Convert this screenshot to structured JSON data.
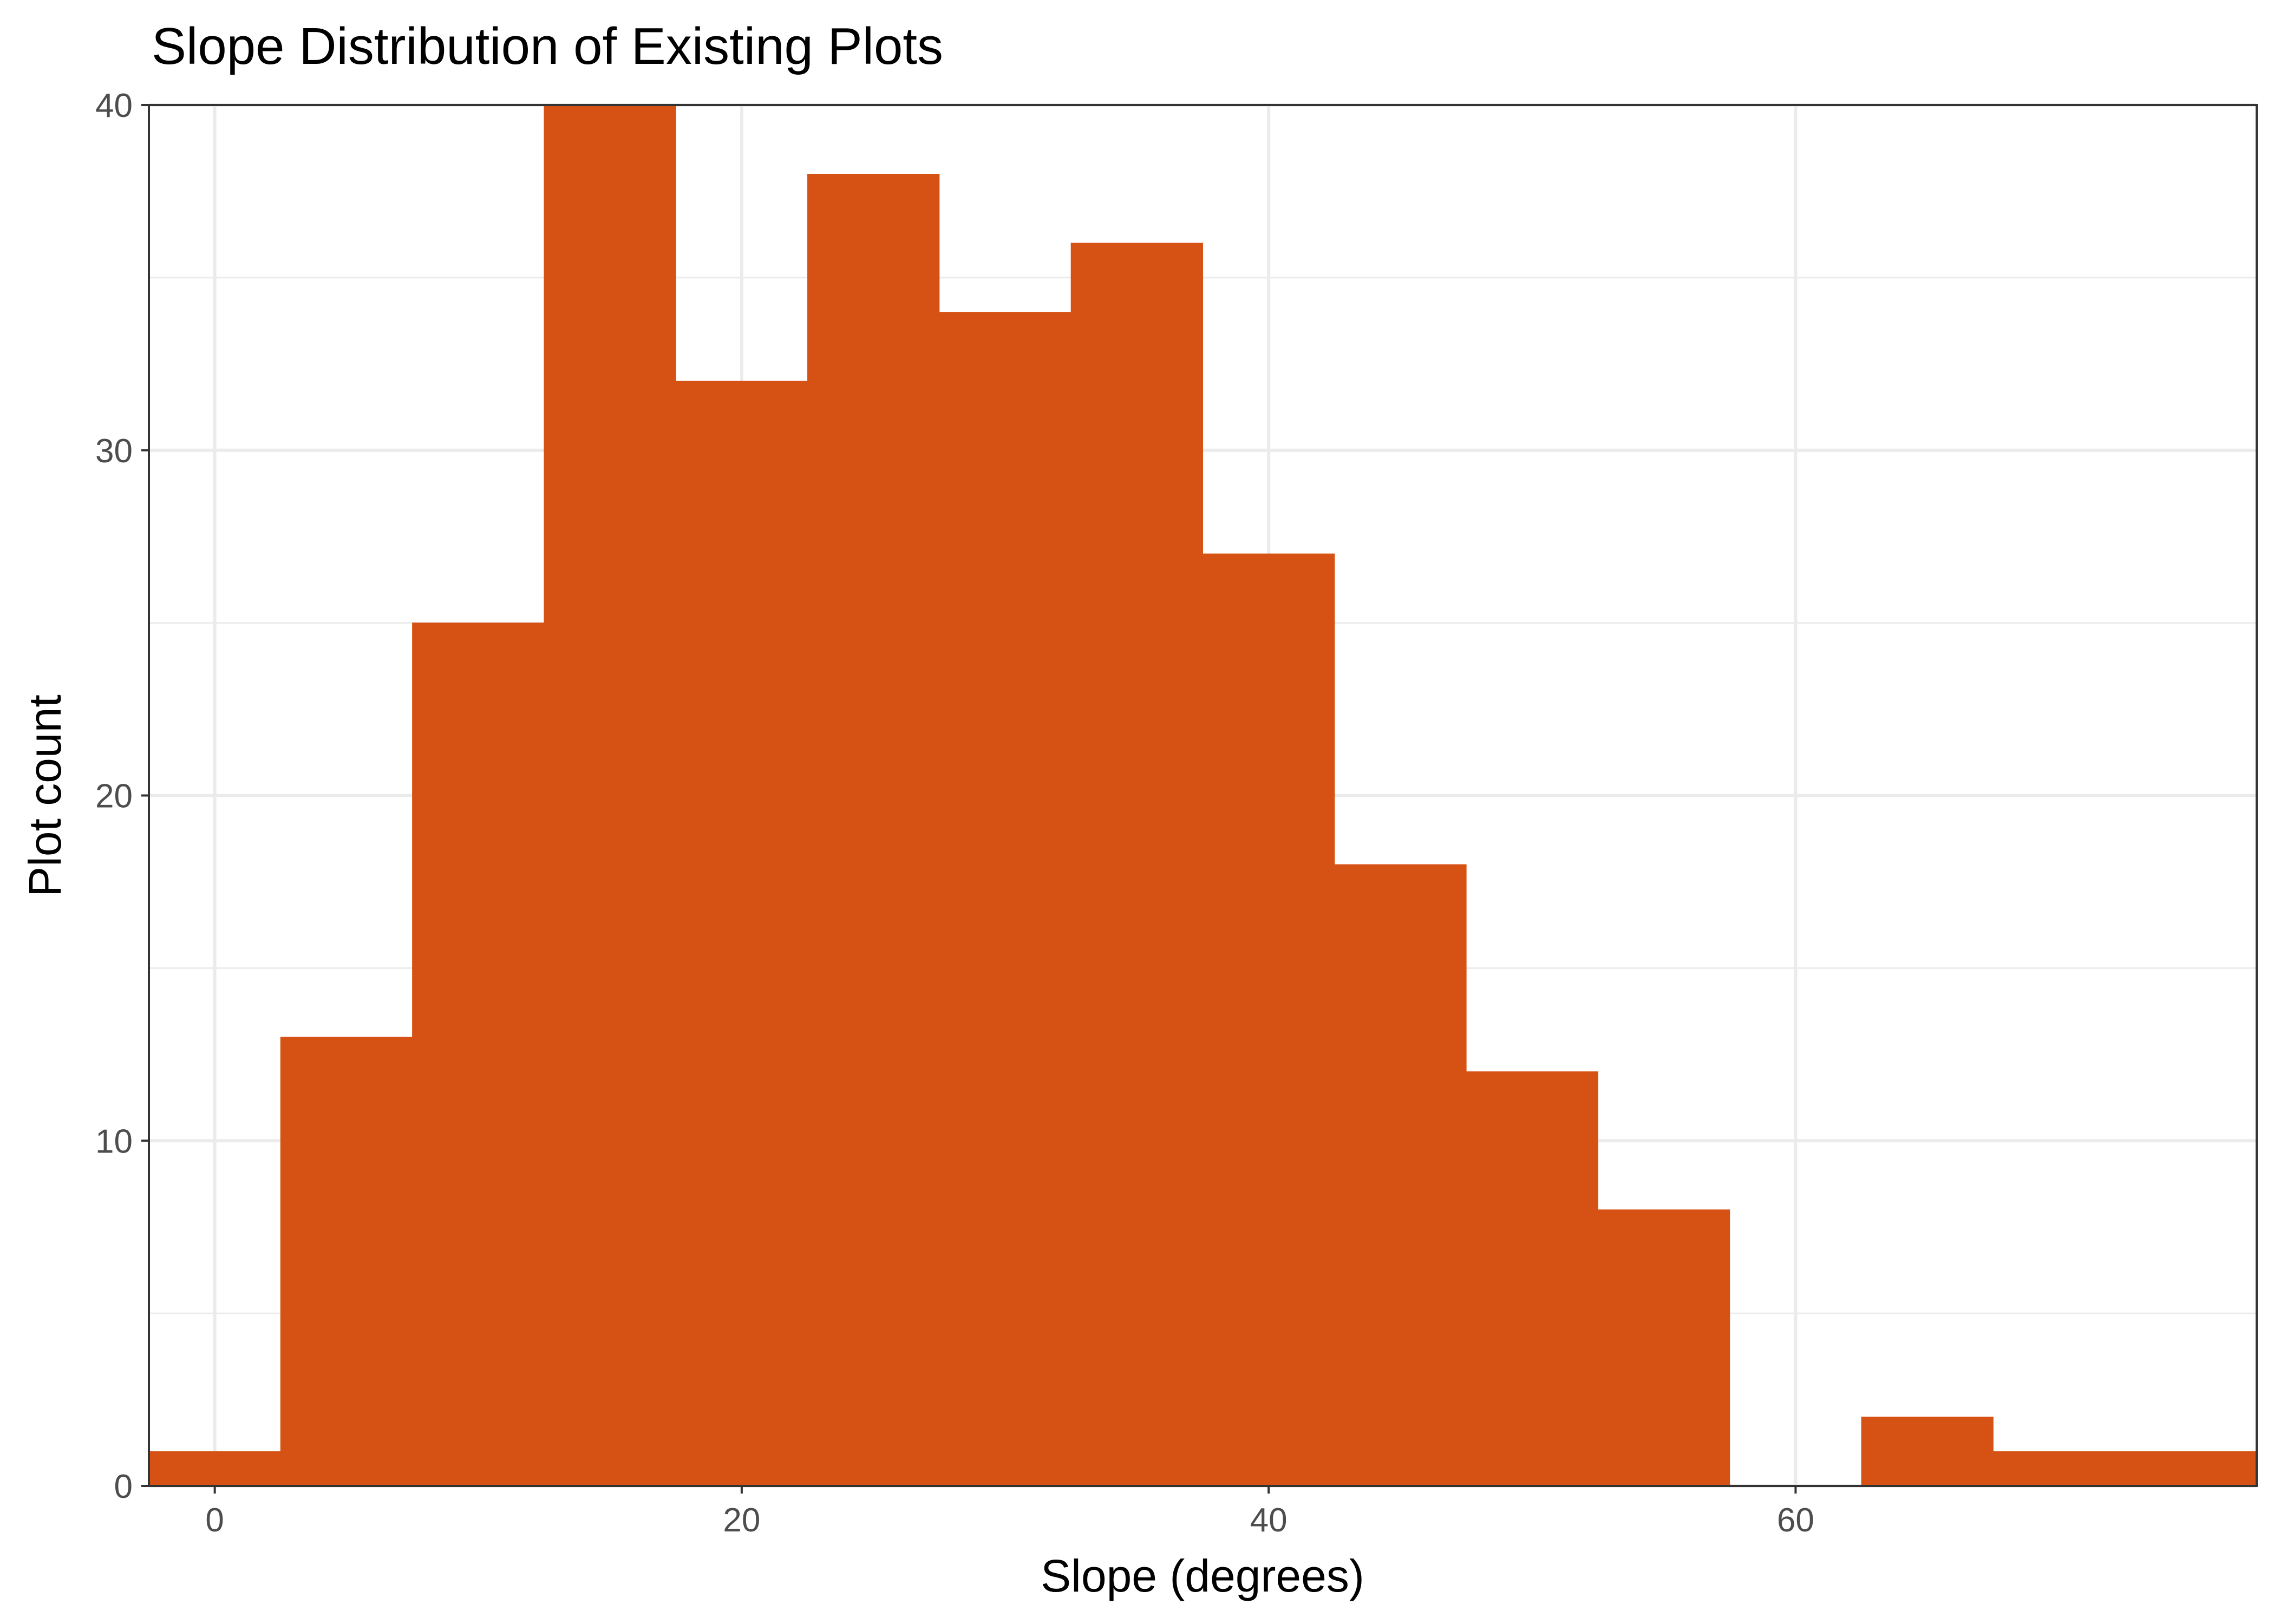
{
  "chart_data": {
    "type": "bar",
    "title": "Slope Distribution of Existing Plots",
    "xlabel": "Slope (degrees)",
    "ylabel": "Plot count",
    "bin_width": 5,
    "bins": [
      {
        "x0": -2.5,
        "x1": 2.5,
        "count": 1
      },
      {
        "x0": 2.5,
        "x1": 7.5,
        "count": 13
      },
      {
        "x0": 7.5,
        "x1": 12.5,
        "count": 25
      },
      {
        "x0": 12.5,
        "x1": 17.5,
        "count": 40
      },
      {
        "x0": 17.5,
        "x1": 22.5,
        "count": 32
      },
      {
        "x0": 22.5,
        "x1": 27.5,
        "count": 38
      },
      {
        "x0": 27.5,
        "x1": 32.5,
        "count": 34
      },
      {
        "x0": 32.5,
        "x1": 37.5,
        "count": 36
      },
      {
        "x0": 37.5,
        "x1": 42.5,
        "count": 27
      },
      {
        "x0": 42.5,
        "x1": 47.5,
        "count": 18
      },
      {
        "x0": 47.5,
        "x1": 52.5,
        "count": 12
      },
      {
        "x0": 52.5,
        "x1": 57.5,
        "count": 8
      },
      {
        "x0": 57.5,
        "x1": 62.5,
        "count": 0
      },
      {
        "x0": 62.5,
        "x1": 67.5,
        "count": 2
      },
      {
        "x0": 67.5,
        "x1": 72.5,
        "count": 1
      },
      {
        "x0": 72.5,
        "x1": 77.5,
        "count": 1
      }
    ],
    "xlim": [
      -2.5,
      77.5
    ],
    "ylim": [
      0,
      40
    ],
    "x_ticks": [
      "0",
      "20",
      "40",
      "60"
    ],
    "y_ticks": [
      "0",
      "10",
      "20",
      "30",
      "40"
    ],
    "grid": true,
    "bar_color": "#d55214"
  }
}
